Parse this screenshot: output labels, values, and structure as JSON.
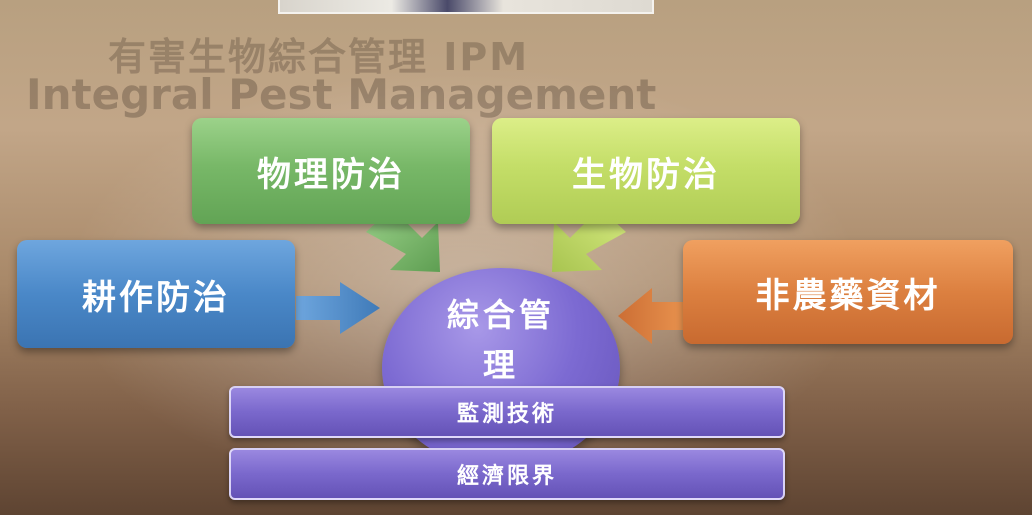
{
  "slide": {
    "title_cn": "有害生物綜合管理 IPM",
    "title_en": "Integral Pest Management"
  },
  "boxes": {
    "physical": "物理防治",
    "biological": "生物防治",
    "cultural": "耕作防治",
    "non_pesticide": "非農藥資材"
  },
  "center": {
    "line1": "綜合管",
    "line2": "理"
  },
  "bars": {
    "monitoring": "監測技術",
    "threshold": "經濟限界"
  },
  "colors": {
    "physical": "#78b868",
    "biological": "#c4de68",
    "cultural": "#4a88c8",
    "non_pesticide": "#dc8040",
    "center": "#7c6ad2",
    "bars": "#7a68cc"
  },
  "icons": {
    "arrows": "block-arrow"
  }
}
